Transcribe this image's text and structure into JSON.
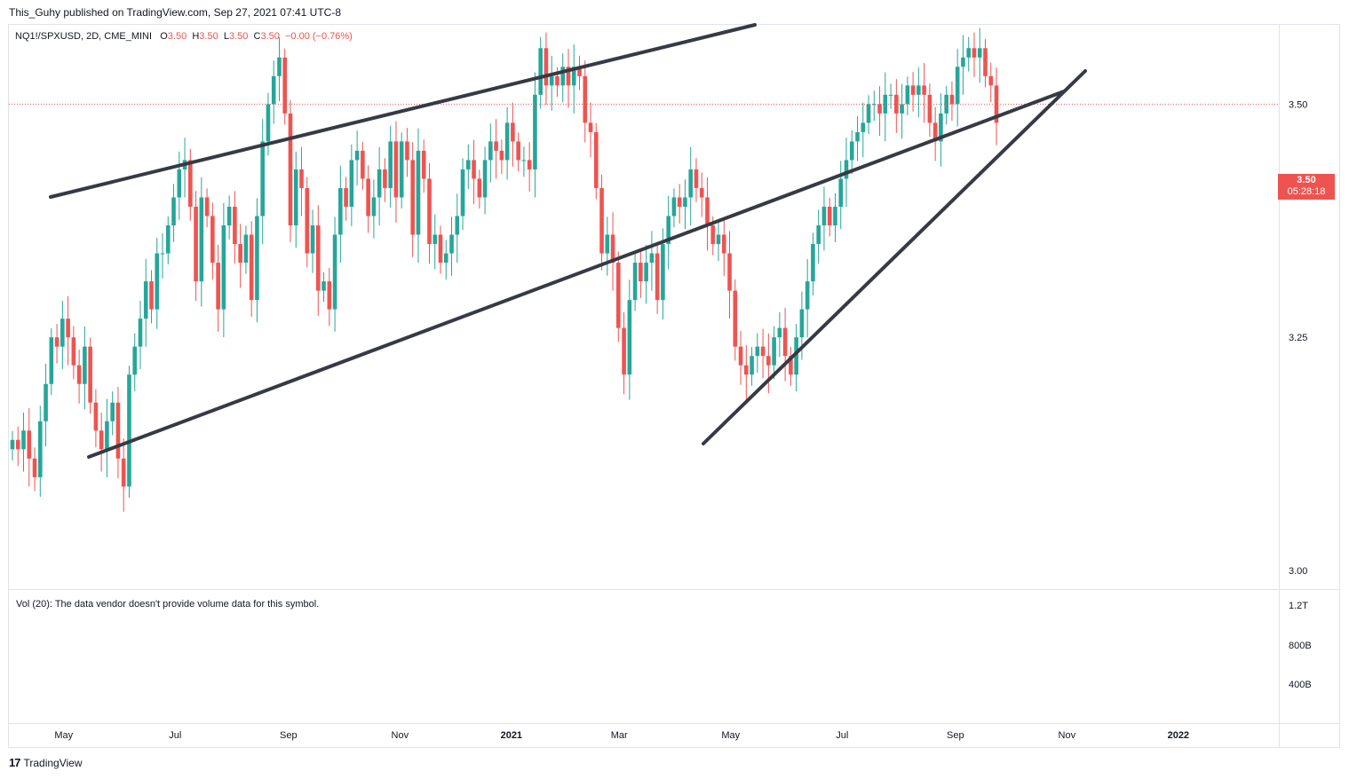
{
  "header": {
    "published": "This_Guhy published on TradingView.com, Sep 27, 2021 07:41 UTC-8"
  },
  "legend": {
    "symbol": "NQ1!/SPXUSD, 2D, CME_MINI",
    "o_label": "O",
    "o_value": "3.50",
    "h_label": "H",
    "h_value": "3.50",
    "l_label": "L",
    "l_value": "3.50",
    "c_label": "C",
    "c_value": "3.50",
    "change": "−0.00 (−0.76%)"
  },
  "price_badge": {
    "price": "3.50",
    "countdown": "05:28:18"
  },
  "volume": {
    "note": "Vol (20): The data vendor doesn't provide volume data for this symbol.",
    "scale": [
      "1.2T",
      "800B",
      "400B"
    ]
  },
  "footer": {
    "brand": "TradingView",
    "logo": "17"
  },
  "colors": {
    "up": "#26a69a",
    "down": "#ef5350",
    "trendline": "#363a45",
    "grid": "#e0e3eb"
  },
  "chart_data": {
    "type": "candlestick",
    "title": "",
    "y_axis": {
      "ticks": [
        3.5,
        3.25,
        3.0
      ],
      "labels": [
        "3.50",
        "3.25",
        "3.00"
      ],
      "range": [
        2.98,
        3.585
      ]
    },
    "x_axis": {
      "labels": [
        {
          "text": "May",
          "date": "2020-05-01"
        },
        {
          "text": "Jul",
          "date": "2020-07-01"
        },
        {
          "text": "Sep",
          "date": "2020-09-01"
        },
        {
          "text": "Nov",
          "date": "2020-11-01"
        },
        {
          "text": "2021",
          "date": "2021-01-01"
        },
        {
          "text": "Mar",
          "date": "2021-03-01"
        },
        {
          "text": "May",
          "date": "2021-05-01"
        },
        {
          "text": "Jul",
          "date": "2021-07-01"
        },
        {
          "text": "Sep",
          "date": "2021-09-01"
        },
        {
          "text": "Nov",
          "date": "2021-11-01"
        },
        {
          "text": "2022",
          "date": "2022-01-01"
        }
      ],
      "range": [
        "2020-04-01",
        "2022-02-25"
      ]
    },
    "last_price": 3.5,
    "closes": [
      3.14,
      3.13,
      3.15,
      3.12,
      3.1,
      3.16,
      3.2,
      3.25,
      3.24,
      3.27,
      3.25,
      3.22,
      3.2,
      3.24,
      3.18,
      3.15,
      3.13,
      3.16,
      3.18,
      3.12,
      3.09,
      3.21,
      3.24,
      3.27,
      3.31,
      3.28,
      3.34,
      3.34,
      3.37,
      3.4,
      3.43,
      3.44,
      3.39,
      3.31,
      3.4,
      3.38,
      3.33,
      3.28,
      3.37,
      3.39,
      3.35,
      3.33,
      3.36,
      3.29,
      3.38,
      3.46,
      3.5,
      3.53,
      3.55,
      3.49,
      3.37,
      3.43,
      3.41,
      3.34,
      3.37,
      3.3,
      3.31,
      3.28,
      3.36,
      3.41,
      3.39,
      3.44,
      3.45,
      3.42,
      3.38,
      3.4,
      3.43,
      3.41,
      3.46,
      3.4,
      3.46,
      3.44,
      3.36,
      3.45,
      3.42,
      3.35,
      3.36,
      3.33,
      3.34,
      3.36,
      3.38,
      3.43,
      3.44,
      3.42,
      3.4,
      3.44,
      3.46,
      3.45,
      3.44,
      3.48,
      3.46,
      3.44,
      3.44,
      3.43,
      3.51,
      3.56,
      3.52,
      3.53,
      3.52,
      3.54,
      3.52,
      3.54,
      3.53,
      3.48,
      3.47,
      3.41,
      3.34,
      3.36,
      3.33,
      3.26,
      3.21,
      3.29,
      3.33,
      3.31,
      3.33,
      3.34,
      3.29,
      3.35,
      3.38,
      3.4,
      3.39,
      3.4,
      3.43,
      3.41,
      3.4,
      3.37,
      3.35,
      3.36,
      3.34,
      3.3,
      3.24,
      3.22,
      3.21,
      3.23,
      3.24,
      3.23,
      3.22,
      3.25,
      3.26,
      3.23,
      3.21,
      3.25,
      3.28,
      3.31,
      3.35,
      3.37,
      3.39,
      3.37,
      3.39,
      3.42,
      3.44,
      3.46,
      3.47,
      3.48,
      3.5,
      3.5,
      3.49,
      3.51,
      3.51,
      3.49,
      3.5,
      3.52,
      3.51,
      3.52,
      3.51,
      3.48,
      3.46,
      3.49,
      3.51,
      3.5,
      3.54,
      3.55,
      3.56,
      3.55,
      3.56,
      3.53,
      3.52,
      3.48
    ]
  }
}
